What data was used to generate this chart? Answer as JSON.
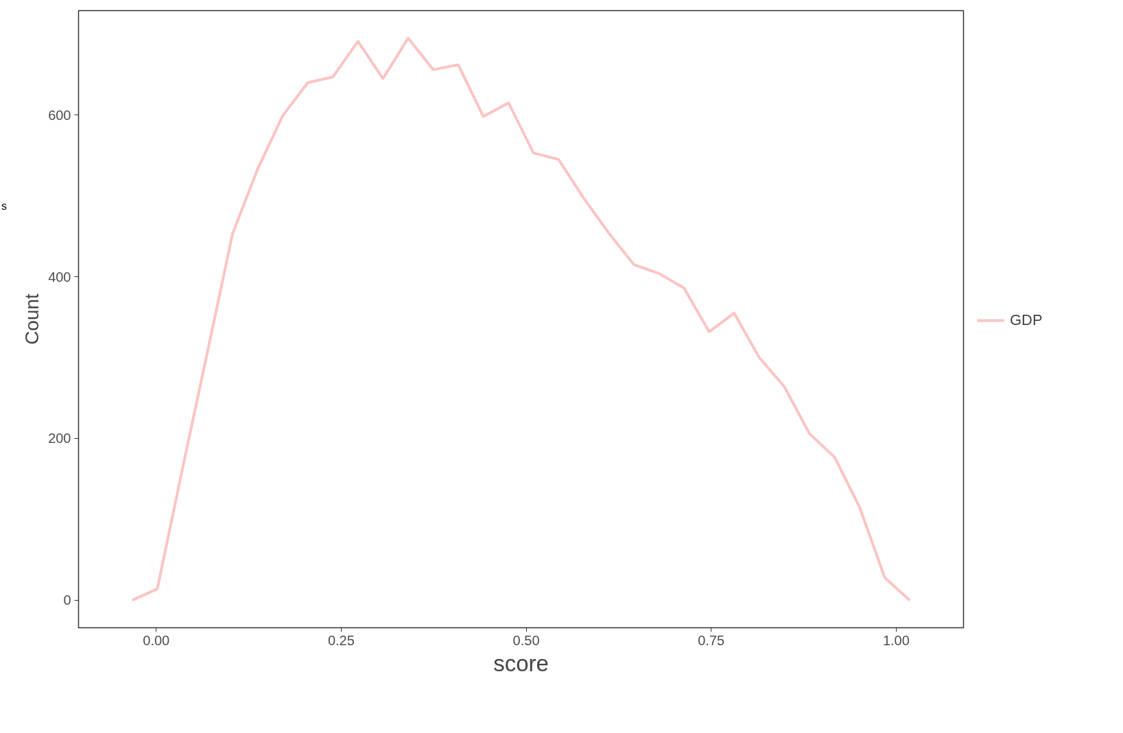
{
  "chart_data": {
    "type": "line",
    "xlabel": "score",
    "ylabel": "Count",
    "x": [
      -0.0325,
      0.0014,
      0.0353,
      0.0692,
      0.1031,
      0.137,
      0.1709,
      0.2048,
      0.2387,
      0.2726,
      0.3065,
      0.3404,
      0.3743,
      0.4082,
      0.4421,
      0.476,
      0.5099,
      0.5438,
      0.5777,
      0.6116,
      0.6455,
      0.6794,
      0.7133,
      0.7472,
      0.7811,
      0.815,
      0.8489,
      0.8828,
      0.9167,
      0.9506,
      0.9845,
      1.0184
    ],
    "series": [
      {
        "name": "GDP",
        "color": "#fbc4c2",
        "values": [
          0,
          14,
          162,
          307,
          453,
          533,
          599,
          640,
          647,
          691,
          645,
          695,
          656,
          662,
          598,
          615,
          553,
          545,
          497,
          454,
          415,
          404,
          386,
          332,
          355,
          300,
          264,
          206,
          177,
          115,
          28,
          0
        ]
      }
    ],
    "xlim": [
      -0.105,
      1.091
    ],
    "ylim": [
      -34,
      729
    ],
    "xticks": [
      {
        "value": 0,
        "label": "0.00"
      },
      {
        "value": 0.25,
        "label": "0.25"
      },
      {
        "value": 0.5,
        "label": "0.50"
      },
      {
        "value": 0.75,
        "label": "0.75"
      },
      {
        "value": 1,
        "label": "1.00"
      }
    ],
    "yticks": [
      0,
      200,
      400,
      600
    ],
    "grid": false,
    "legend": "right",
    "marker": "none",
    "line_style": "solid",
    "annotations": [
      "s"
    ]
  }
}
